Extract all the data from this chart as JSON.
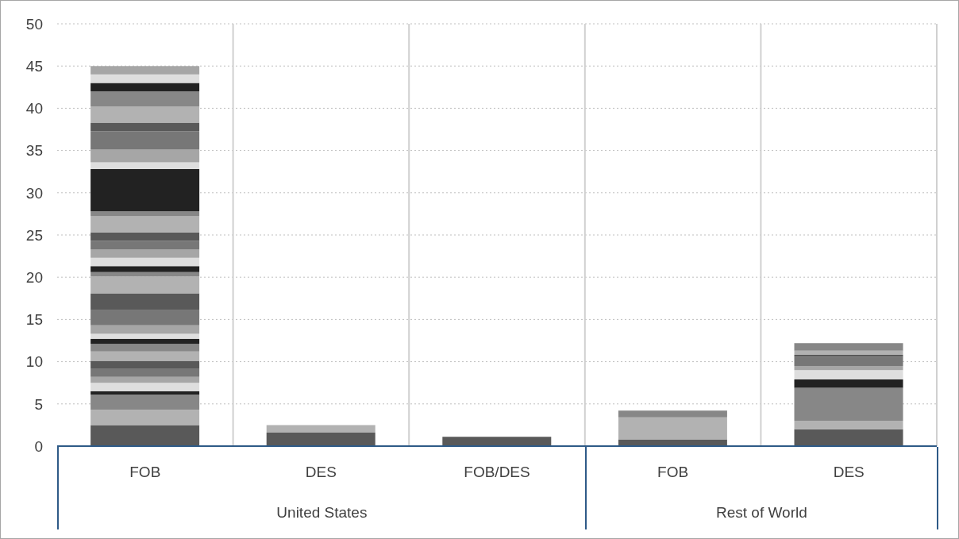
{
  "chart_data": {
    "type": "bar",
    "stacked": true,
    "categories": [
      "FOB",
      "DES",
      "FOB/DES",
      "FOB",
      "DES"
    ],
    "annotations": [
      "United States",
      "Rest of World"
    ],
    "ylim": [
      0,
      50
    ],
    "yticks": [
      0,
      5,
      10,
      15,
      20,
      25,
      30,
      35,
      40,
      45,
      50
    ],
    "grid": true,
    "series": [
      {
        "color": "#595959",
        "values": [
          2.5,
          1.6,
          1.1,
          0.8,
          2.0
        ]
      },
      {
        "color": "#b2b2b2",
        "values": [
          1.8,
          0.9,
          null,
          2.6,
          1.0
        ]
      },
      {
        "color": "#878787",
        "values": [
          1.8,
          null,
          null,
          0.8,
          3.9
        ]
      },
      {
        "color": "#222222",
        "values": [
          0.4,
          null,
          null,
          null,
          1.0
        ]
      },
      {
        "color": "#dedede",
        "values": [
          1.0,
          null,
          null,
          null,
          1.1
        ]
      },
      {
        "color": "#a6a6a6",
        "values": [
          0.7,
          null,
          null,
          null,
          0.5
        ]
      },
      {
        "color": "#777777",
        "values": [
          1.0,
          null,
          null,
          null,
          1.1
        ]
      },
      {
        "color": "#595959",
        "values": [
          0.9,
          null,
          null,
          null,
          0.2
        ]
      },
      {
        "color": "#b2b2b2",
        "values": [
          1.1,
          null,
          null,
          null,
          0.5
        ]
      },
      {
        "color": "#878787",
        "values": [
          0.9,
          null,
          null,
          null,
          0.9
        ]
      },
      {
        "color": "#222222",
        "values": [
          0.6,
          null,
          null,
          null,
          null
        ]
      },
      {
        "color": "#dedede",
        "values": [
          0.6,
          null,
          null,
          null,
          null
        ]
      },
      {
        "color": "#a6a6a6",
        "values": [
          1.0,
          null,
          null,
          null,
          null
        ]
      },
      {
        "color": "#777777",
        "values": [
          1.8,
          null,
          null,
          null,
          null
        ]
      },
      {
        "color": "#595959",
        "values": [
          2.0,
          null,
          null,
          null,
          null
        ]
      },
      {
        "color": "#b2b2b2",
        "values": [
          2.0,
          null,
          null,
          null,
          null
        ]
      },
      {
        "color": "#878787",
        "values": [
          0.5,
          null,
          null,
          null,
          null
        ]
      },
      {
        "color": "#222222",
        "values": [
          0.7,
          null,
          null,
          null,
          null
        ]
      },
      {
        "color": "#dedede",
        "values": [
          1.0,
          null,
          null,
          null,
          null
        ]
      },
      {
        "color": "#a6a6a6",
        "values": [
          1.0,
          null,
          null,
          null,
          null
        ]
      },
      {
        "color": "#777777",
        "values": [
          1.0,
          null,
          null,
          null,
          null
        ]
      },
      {
        "color": "#595959",
        "values": [
          1.0,
          null,
          null,
          null,
          null
        ]
      },
      {
        "color": "#b2b2b2",
        "values": [
          1.9,
          null,
          null,
          null,
          null
        ]
      },
      {
        "color": "#878787",
        "values": [
          0.6,
          null,
          null,
          null,
          null
        ]
      },
      {
        "color": "#222222",
        "values": [
          5.0,
          null,
          null,
          null,
          null
        ]
      },
      {
        "color": "#dedede",
        "values": [
          0.8,
          null,
          null,
          null,
          null
        ]
      },
      {
        "color": "#a6a6a6",
        "values": [
          1.5,
          null,
          null,
          null,
          null
        ]
      },
      {
        "color": "#777777",
        "values": [
          2.2,
          null,
          null,
          null,
          null
        ]
      },
      {
        "color": "#595959",
        "values": [
          1.0,
          null,
          null,
          null,
          null
        ]
      },
      {
        "color": "#b2b2b2",
        "values": [
          1.9,
          null,
          null,
          null,
          null
        ]
      },
      {
        "color": "#878787",
        "values": [
          1.8,
          null,
          null,
          null,
          null
        ]
      },
      {
        "color": "#222222",
        "values": [
          1.0,
          null,
          null,
          null,
          null
        ]
      },
      {
        "color": "#dedede",
        "values": [
          1.0,
          null,
          null,
          null,
          null
        ]
      },
      {
        "color": "#a6a6a6",
        "values": [
          1.0,
          null,
          null,
          null,
          null
        ]
      }
    ]
  }
}
